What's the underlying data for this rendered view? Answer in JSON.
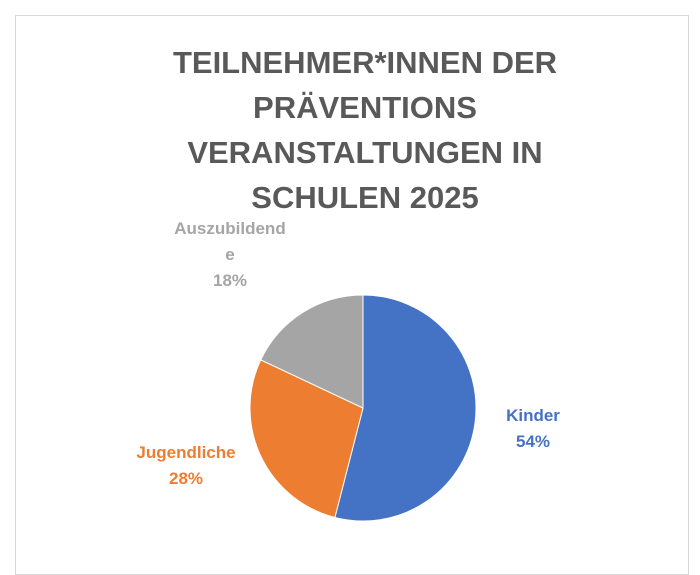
{
  "chart_data": {
    "type": "pie",
    "title": "TEILNEHMER*INNEN DER PRÄVENTIONS VERANSTALTUNGEN IN SCHULEN 2025",
    "categories": [
      "Kinder",
      "Jugendliche",
      "Auszubildende"
    ],
    "values": [
      54,
      28,
      18
    ],
    "value_labels": [
      "54%",
      "28%",
      "18%"
    ],
    "colors": [
      "#4472c4",
      "#ed7d31",
      "#a5a5a5"
    ]
  }
}
